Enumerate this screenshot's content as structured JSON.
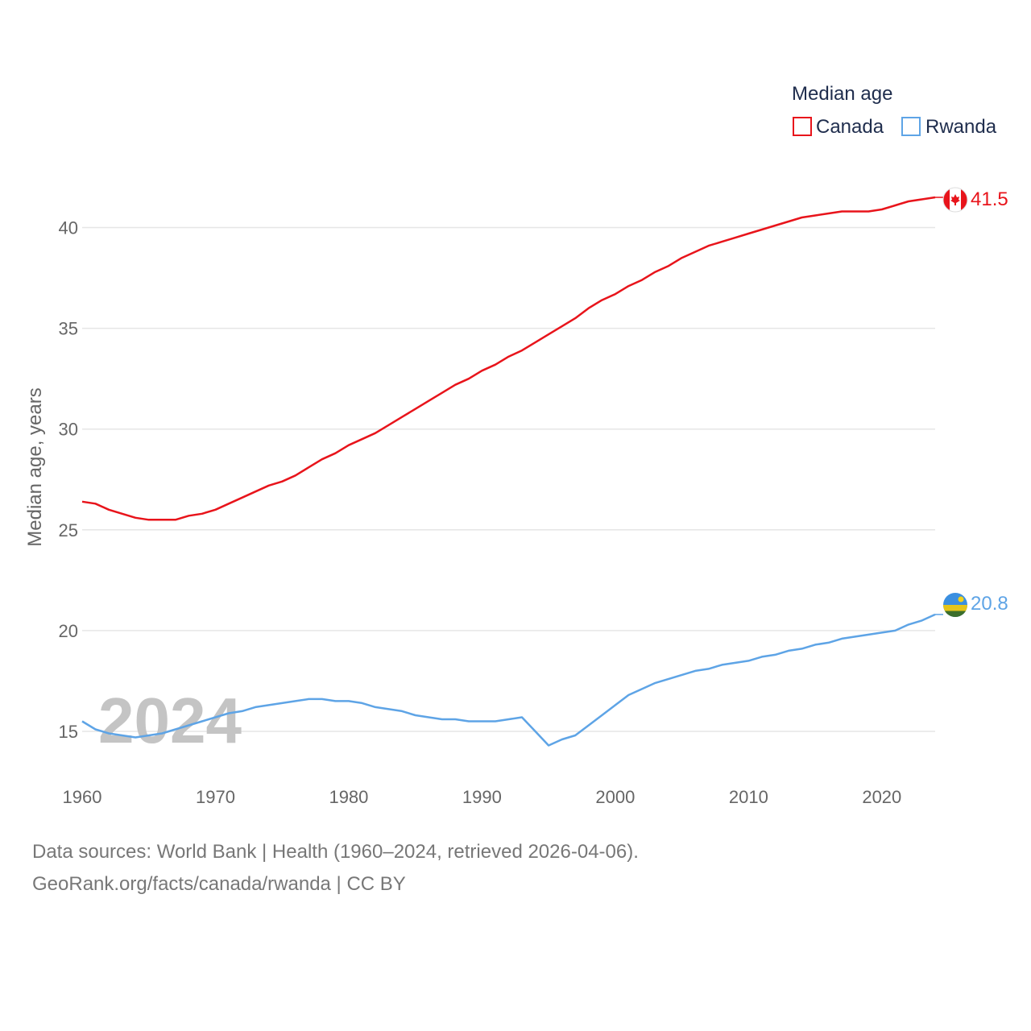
{
  "chart_data": {
    "type": "line",
    "title": "",
    "legend_title": "Median age",
    "xlabel": "",
    "ylabel": "Median age, years",
    "xlim": [
      1960,
      2024
    ],
    "ylim": [
      13,
      42.5
    ],
    "x_ticks": [
      "1960",
      "1970",
      "1980",
      "1990",
      "2000",
      "2010",
      "2020"
    ],
    "y_ticks": [
      "15",
      "20",
      "25",
      "30",
      "35",
      "40"
    ],
    "grid": true,
    "legend_position": "top-right",
    "year_label": "2024",
    "x": [
      1960,
      1961,
      1962,
      1963,
      1964,
      1965,
      1966,
      1967,
      1968,
      1969,
      1970,
      1971,
      1972,
      1973,
      1974,
      1975,
      1976,
      1977,
      1978,
      1979,
      1980,
      1981,
      1982,
      1983,
      1984,
      1985,
      1986,
      1987,
      1988,
      1989,
      1990,
      1991,
      1992,
      1993,
      1994,
      1995,
      1996,
      1997,
      1998,
      1999,
      2000,
      2001,
      2002,
      2003,
      2004,
      2005,
      2006,
      2007,
      2008,
      2009,
      2010,
      2011,
      2012,
      2013,
      2014,
      2015,
      2016,
      2017,
      2018,
      2019,
      2020,
      2021,
      2022,
      2023,
      2024
    ],
    "series": [
      {
        "name": "Canada",
        "color": "#e8141b",
        "end_label": "41.5",
        "flag_icon": "canada-flag-icon",
        "values": [
          26.4,
          26.3,
          26.0,
          25.8,
          25.6,
          25.5,
          25.5,
          25.5,
          25.7,
          25.8,
          26.0,
          26.3,
          26.6,
          26.9,
          27.2,
          27.4,
          27.7,
          28.1,
          28.5,
          28.8,
          29.2,
          29.5,
          29.8,
          30.2,
          30.6,
          31.0,
          31.4,
          31.8,
          32.2,
          32.5,
          32.9,
          33.2,
          33.6,
          33.9,
          34.3,
          34.7,
          35.1,
          35.5,
          36.0,
          36.4,
          36.7,
          37.1,
          37.4,
          37.8,
          38.1,
          38.5,
          38.8,
          39.1,
          39.3,
          39.5,
          39.7,
          39.9,
          40.1,
          40.3,
          40.5,
          40.6,
          40.7,
          40.8,
          40.8,
          40.8,
          40.9,
          41.1,
          41.3,
          41.4,
          41.5
        ]
      },
      {
        "name": "Rwanda",
        "color": "#5ea4e6",
        "end_label": "20.8",
        "flag_icon": "rwanda-flag-icon",
        "values": [
          15.5,
          15.1,
          14.9,
          14.8,
          14.7,
          14.8,
          14.9,
          15.1,
          15.3,
          15.5,
          15.7,
          15.9,
          16.0,
          16.2,
          16.3,
          16.4,
          16.5,
          16.6,
          16.6,
          16.5,
          16.5,
          16.4,
          16.2,
          16.1,
          16.0,
          15.8,
          15.7,
          15.6,
          15.6,
          15.5,
          15.5,
          15.5,
          15.6,
          15.7,
          15.0,
          14.3,
          14.6,
          14.8,
          15.3,
          15.8,
          16.3,
          16.8,
          17.1,
          17.4,
          17.6,
          17.8,
          18.0,
          18.1,
          18.3,
          18.4,
          18.5,
          18.7,
          18.8,
          19.0,
          19.1,
          19.3,
          19.4,
          19.6,
          19.7,
          19.8,
          19.9,
          20.0,
          20.3,
          20.5,
          20.8
        ]
      }
    ]
  },
  "footer": {
    "line1": "Data sources: World Bank | Health (1960–2024, retrieved 2026-04-06).",
    "line2": "GeoRank.org/facts/canada/rwanda | CC BY"
  }
}
